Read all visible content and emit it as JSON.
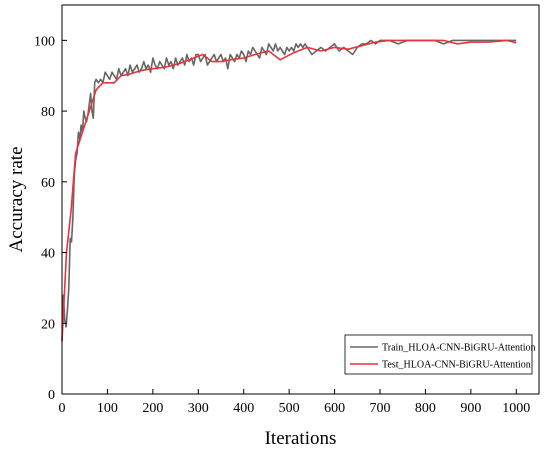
{
  "chart_data": {
    "type": "line",
    "xlabel": "Iterations",
    "ylabel": "Accuracy rate",
    "xlim": [
      0,
      1050
    ],
    "ylim": [
      0,
      110
    ],
    "xticks": [
      0,
      100,
      200,
      300,
      400,
      500,
      600,
      700,
      800,
      900,
      1000
    ],
    "yticks": [
      0,
      20,
      40,
      60,
      80,
      100
    ],
    "grid": false,
    "legend_position": "bottom-right",
    "series": [
      {
        "name": "Train_HLOA-CNN-BiGRU-Attention",
        "color": "#666666",
        "x": [
          0,
          3,
          6,
          9,
          12,
          15,
          18,
          21,
          24,
          27,
          30,
          33,
          36,
          39,
          42,
          45,
          48,
          51,
          54,
          57,
          60,
          63,
          66,
          69,
          72,
          75,
          80,
          85,
          90,
          95,
          100,
          105,
          110,
          115,
          120,
          125,
          130,
          135,
          140,
          145,
          150,
          155,
          160,
          165,
          170,
          175,
          180,
          185,
          190,
          195,
          200,
          205,
          210,
          215,
          220,
          225,
          230,
          235,
          240,
          245,
          250,
          255,
          260,
          265,
          270,
          275,
          280,
          285,
          290,
          295,
          300,
          305,
          310,
          315,
          320,
          325,
          330,
          335,
          340,
          345,
          350,
          355,
          360,
          365,
          370,
          375,
          380,
          385,
          390,
          395,
          400,
          405,
          410,
          415,
          420,
          425,
          430,
          435,
          440,
          445,
          450,
          455,
          460,
          465,
          470,
          475,
          480,
          485,
          490,
          495,
          500,
          505,
          510,
          515,
          520,
          525,
          530,
          535,
          540,
          545,
          550,
          560,
          570,
          580,
          590,
          600,
          610,
          620,
          630,
          640,
          650,
          660,
          670,
          680,
          690,
          700,
          720,
          740,
          760,
          780,
          800,
          820,
          840,
          860,
          880,
          900,
          920,
          940,
          960,
          980,
          1000
        ],
        "y": [
          15,
          28,
          21,
          19,
          24,
          30,
          44,
          43,
          50,
          62,
          66,
          68,
          74,
          72,
          76,
          74,
          80,
          78,
          77,
          79,
          82,
          85,
          80,
          78,
          88,
          89,
          88,
          89,
          88,
          91,
          90,
          89,
          91,
          90,
          89,
          92,
          90,
          91,
          92,
          90,
          93,
          91,
          92,
          93,
          91,
          92,
          94,
          92,
          93,
          91,
          95,
          93,
          92,
          94,
          93,
          92,
          95,
          93,
          94,
          92,
          95,
          93,
          94,
          95,
          93,
          96,
          94,
          95,
          93,
          96,
          96,
          94,
          95,
          96,
          93,
          94,
          95,
          96,
          94,
          95,
          96,
          94,
          95,
          92,
          96,
          95,
          94,
          96,
          95,
          97,
          96,
          94,
          97,
          96,
          98,
          97,
          96,
          95,
          98,
          97,
          96,
          99,
          98,
          97,
          99,
          97,
          98,
          97,
          96,
          98,
          97,
          98,
          97,
          99,
          98,
          99,
          98,
          99,
          98,
          97,
          96,
          97,
          98,
          97,
          98,
          99,
          97,
          98,
          97,
          96,
          98,
          99,
          99,
          100,
          99,
          100,
          100,
          99,
          100,
          100,
          100,
          100,
          99,
          100,
          100,
          100,
          100,
          100,
          100,
          100,
          100
        ]
      },
      {
        "name": "Test_HLOA-CNN-BiGRU-Attention",
        "color": "#e8333c",
        "x": [
          0,
          10,
          20,
          30,
          45,
          60,
          75,
          90,
          100,
          115,
          130,
          150,
          175,
          200,
          230,
          260,
          290,
          310,
          330,
          350,
          370,
          400,
          425,
          455,
          480,
          510,
          540,
          570,
          600,
          630,
          660,
          690,
          720,
          760,
          800,
          840,
          870,
          900,
          940,
          980,
          1000
        ],
        "y": [
          15,
          40,
          52,
          68,
          74,
          80,
          86,
          88,
          88,
          88,
          90,
          90.5,
          91.5,
          92,
          92.5,
          93.5,
          95,
          96,
          94,
          94,
          94.5,
          95,
          96,
          97,
          94.5,
          96.5,
          98,
          97,
          98,
          97.5,
          98.5,
          99.5,
          100,
          100,
          100,
          100,
          99,
          99.5,
          99.5,
          100,
          99.3
        ]
      }
    ]
  }
}
